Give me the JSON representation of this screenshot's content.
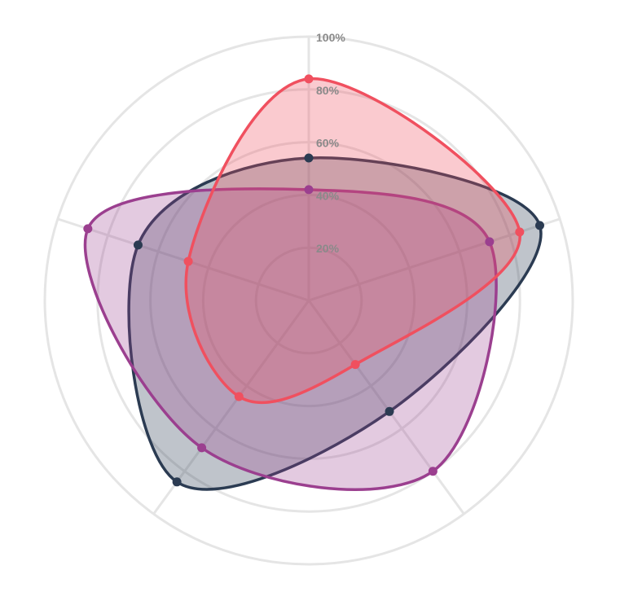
{
  "chart_data": {
    "type": "radar",
    "title": "",
    "axes_count": 5,
    "rlim": [
      0,
      100
    ],
    "radial_ticks": [
      "20%",
      "40%",
      "60%",
      "80%",
      "100%"
    ],
    "radial_tick_values": [
      20,
      40,
      60,
      80,
      100
    ],
    "grid": true,
    "legend": "none",
    "series": [
      {
        "color": "#2b3b52",
        "fill": "rgba(43,59,82,0.30)",
        "values": [
          54,
          92,
          52,
          85,
          68
        ]
      },
      {
        "color": "#9b3f8f",
        "fill": "rgba(155,63,143,0.28)",
        "values": [
          42,
          72,
          80,
          69,
          88
        ]
      },
      {
        "color": "#f0505f",
        "fill": "rgba(240,80,95,0.30)",
        "values": [
          84,
          84,
          30,
          45,
          48
        ]
      }
    ]
  }
}
